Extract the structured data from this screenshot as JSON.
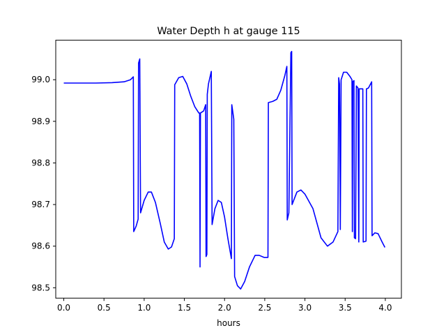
{
  "chart_data": {
    "type": "line",
    "title": "Water Depth h at gauge 115",
    "xlabel": "hours",
    "ylabel": "",
    "xlim": [
      -0.1,
      4.2
    ],
    "ylim": [
      98.475,
      99.095
    ],
    "xticks": [
      0.0,
      0.5,
      1.0,
      1.5,
      2.0,
      2.5,
      3.0,
      3.5,
      4.0
    ],
    "xtick_labels": [
      "0.0",
      "0.5",
      "1.0",
      "1.5",
      "2.0",
      "2.5",
      "3.0",
      "3.5",
      "4.0"
    ],
    "yticks": [
      98.5,
      98.6,
      98.7,
      98.8,
      98.9,
      99.0
    ],
    "ytick_labels": [
      "98.5",
      "98.6",
      "98.7",
      "98.8",
      "98.9",
      "99.0"
    ],
    "grid": false,
    "legend": "none",
    "series": [
      {
        "color": "#0000ff",
        "points": [
          [
            0.0,
            98.992
          ],
          [
            0.2,
            98.992
          ],
          [
            0.4,
            98.992
          ],
          [
            0.6,
            98.993
          ],
          [
            0.75,
            98.995
          ],
          [
            0.83,
            99.0
          ],
          [
            0.865,
            99.007
          ],
          [
            0.87,
            98.635
          ],
          [
            0.9,
            98.648
          ],
          [
            0.925,
            98.665
          ],
          [
            0.93,
            99.04
          ],
          [
            0.945,
            99.05
          ],
          [
            0.955,
            98.68
          ],
          [
            1.0,
            98.71
          ],
          [
            1.05,
            98.73
          ],
          [
            1.09,
            98.73
          ],
          [
            1.14,
            98.705
          ],
          [
            1.2,
            98.655
          ],
          [
            1.25,
            98.61
          ],
          [
            1.3,
            98.593
          ],
          [
            1.34,
            98.598
          ],
          [
            1.375,
            98.618
          ],
          [
            1.38,
            98.988
          ],
          [
            1.43,
            99.005
          ],
          [
            1.48,
            99.008
          ],
          [
            1.53,
            98.99
          ],
          [
            1.58,
            98.96
          ],
          [
            1.63,
            98.935
          ],
          [
            1.68,
            98.92
          ],
          [
            1.69,
            98.92
          ],
          [
            1.695,
            98.55
          ],
          [
            1.7,
            98.92
          ],
          [
            1.74,
            98.925
          ],
          [
            1.765,
            98.94
          ],
          [
            1.77,
            98.575
          ],
          [
            1.78,
            98.58
          ],
          [
            1.785,
            98.965
          ],
          [
            1.8,
            98.99
          ],
          [
            1.835,
            99.02
          ],
          [
            1.845,
            98.652
          ],
          [
            1.88,
            98.69
          ],
          [
            1.92,
            98.71
          ],
          [
            1.96,
            98.705
          ],
          [
            2.0,
            98.67
          ],
          [
            2.04,
            98.62
          ],
          [
            2.085,
            98.57
          ],
          [
            2.09,
            98.94
          ],
          [
            2.115,
            98.905
          ],
          [
            2.125,
            98.527
          ],
          [
            2.16,
            98.505
          ],
          [
            2.2,
            98.497
          ],
          [
            2.25,
            98.515
          ],
          [
            2.31,
            98.55
          ],
          [
            2.38,
            98.578
          ],
          [
            2.43,
            98.578
          ],
          [
            2.49,
            98.573
          ],
          [
            2.54,
            98.573
          ],
          [
            2.545,
            98.945
          ],
          [
            2.6,
            98.948
          ],
          [
            2.65,
            98.953
          ],
          [
            2.7,
            98.975
          ],
          [
            2.75,
            99.01
          ],
          [
            2.775,
            99.032
          ],
          [
            2.78,
            98.663
          ],
          [
            2.8,
            98.68
          ],
          [
            2.825,
            99.065
          ],
          [
            2.835,
            99.068
          ],
          [
            2.84,
            98.7
          ],
          [
            2.9,
            98.73
          ],
          [
            2.95,
            98.735
          ],
          [
            3.0,
            98.725
          ],
          [
            3.1,
            98.69
          ],
          [
            3.2,
            98.62
          ],
          [
            3.28,
            98.6
          ],
          [
            3.35,
            98.61
          ],
          [
            3.41,
            98.635
          ],
          [
            3.42,
            99.005
          ],
          [
            3.43,
            98.99
          ],
          [
            3.44,
            98.64
          ],
          [
            3.45,
            99.0
          ],
          [
            3.48,
            99.018
          ],
          [
            3.52,
            99.018
          ],
          [
            3.56,
            99.008
          ],
          [
            3.585,
            99.0
          ],
          [
            3.59,
            98.635
          ],
          [
            3.595,
            98.995
          ],
          [
            3.61,
            98.998
          ],
          [
            3.615,
            98.62
          ],
          [
            3.63,
            98.618
          ],
          [
            3.64,
            98.985
          ],
          [
            3.66,
            98.98
          ],
          [
            3.67,
            98.61
          ],
          [
            3.675,
            98.978
          ],
          [
            3.72,
            98.978
          ],
          [
            3.725,
            98.61
          ],
          [
            3.76,
            98.612
          ],
          [
            3.765,
            98.978
          ],
          [
            3.79,
            98.98
          ],
          [
            3.83,
            98.995
          ],
          [
            3.835,
            98.625
          ],
          [
            3.87,
            98.632
          ],
          [
            3.91,
            98.63
          ],
          [
            3.96,
            98.61
          ],
          [
            3.995,
            98.597
          ]
        ]
      }
    ]
  }
}
